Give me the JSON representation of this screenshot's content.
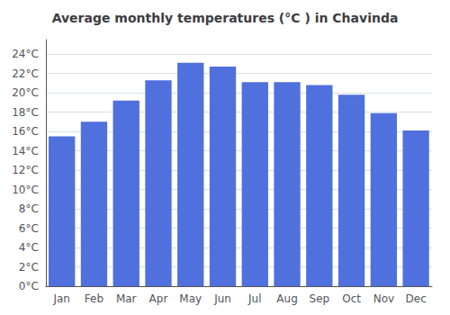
{
  "chart_data": {
    "type": "bar",
    "title": "Average monthly temperatures (°C ) in Chavinda",
    "categories": [
      "Jan",
      "Feb",
      "Mar",
      "Apr",
      "May",
      "Jun",
      "Jul",
      "Aug",
      "Sep",
      "Oct",
      "Nov",
      "Dec"
    ],
    "values": [
      15.5,
      17.0,
      19.2,
      21.3,
      23.1,
      22.7,
      21.1,
      21.1,
      20.8,
      19.8,
      17.9,
      16.1
    ],
    "ylim": [
      0,
      25.5
    ],
    "yticks": [
      {
        "value": 0,
        "label": "0°C"
      },
      {
        "value": 2,
        "label": "2°C"
      },
      {
        "value": 4,
        "label": "4°C"
      },
      {
        "value": 6,
        "label": "6°C"
      },
      {
        "value": 8,
        "label": "8°C"
      },
      {
        "value": 10,
        "label": "10°C"
      },
      {
        "value": 12,
        "label": "12°C"
      },
      {
        "value": 14,
        "label": "14°C"
      },
      {
        "value": 16,
        "label": "16°C"
      },
      {
        "value": 18,
        "label": "18°C"
      },
      {
        "value": 20,
        "label": "20°C"
      },
      {
        "value": 22,
        "label": "22°C"
      },
      {
        "value": 24,
        "label": "24°C"
      }
    ],
    "grid": true
  }
}
